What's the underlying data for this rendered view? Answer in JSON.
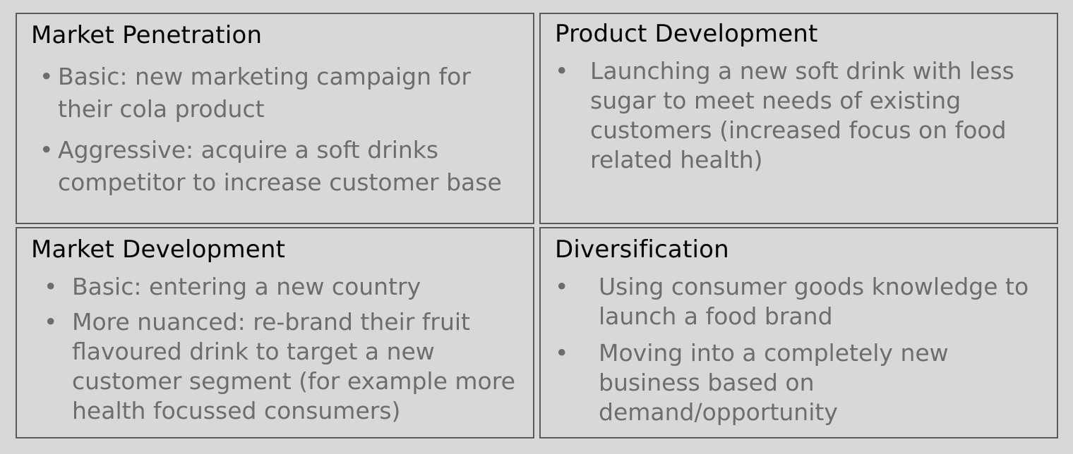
{
  "quadrants": {
    "top_left": {
      "title": "Market Penetration",
      "bullets": [
        "Basic: new marketing campaign for their cola product",
        "Aggressive: acquire a soft drinks competitor to increase customer base"
      ]
    },
    "top_right": {
      "title": "Product Development",
      "bullets": [
        "Launching a new soft drink with less sugar to meet needs of existing customers (increased focus on food related health)"
      ]
    },
    "bottom_left": {
      "title": "Market Development",
      "bullets": [
        "Basic: entering a new country",
        "More nuanced: re-brand their fruit flavoured drink to target a new customer segment (for example more health focussed consumers)"
      ]
    },
    "bottom_right": {
      "title": "Diversification",
      "bullets": [
        "Using consumer goods knowledge to launch a food brand",
        "Moving into a completely new business based on demand/opportunity"
      ]
    }
  },
  "bullet_symbol": "•",
  "colors": {
    "background": "#d8d8d8",
    "border": "#5b5b5b",
    "title_text": "#000000",
    "bullet_text": "#6d6d6d"
  }
}
